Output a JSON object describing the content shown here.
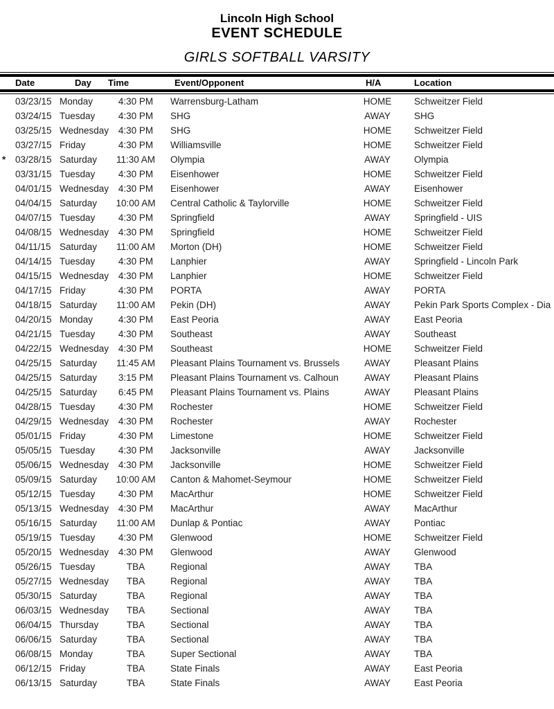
{
  "page": {
    "school": "Lincoln High School",
    "title": "EVENT SCHEDULE",
    "subtitle": "GIRLS SOFTBALL VARSITY"
  },
  "table": {
    "columns": [
      "Date",
      "Day",
      "Time",
      "Event/Opponent",
      "H/A",
      "Location"
    ],
    "rows": [
      {
        "flag": "",
        "date": "03/23/15",
        "day": "Monday",
        "time": "4:30 PM",
        "event": "Warrensburg-Latham",
        "ha": "HOME",
        "location": "Schweitzer Field"
      },
      {
        "flag": "",
        "date": "03/24/15",
        "day": "Tuesday",
        "time": "4:30 PM",
        "event": "SHG",
        "ha": "AWAY",
        "location": "SHG"
      },
      {
        "flag": "",
        "date": "03/25/15",
        "day": "Wednesday",
        "time": "4:30 PM",
        "event": "SHG",
        "ha": "HOME",
        "location": "Schweitzer Field"
      },
      {
        "flag": "",
        "date": "03/27/15",
        "day": "Friday",
        "time": "4:30 PM",
        "event": "Williamsville",
        "ha": "HOME",
        "location": "Schweitzer Field"
      },
      {
        "flag": "*",
        "date": "03/28/15",
        "day": "Saturday",
        "time": "11:30 AM",
        "event": "Olympia",
        "ha": "AWAY",
        "location": "Olympia"
      },
      {
        "flag": "",
        "date": "03/31/15",
        "day": "Tuesday",
        "time": "4:30 PM",
        "event": "Eisenhower",
        "ha": "HOME",
        "location": "Schweitzer Field"
      },
      {
        "flag": "",
        "date": "04/01/15",
        "day": "Wednesday",
        "time": "4:30 PM",
        "event": "Eisenhower",
        "ha": "AWAY",
        "location": "Eisenhower"
      },
      {
        "flag": "",
        "date": "04/04/15",
        "day": "Saturday",
        "time": "10:00 AM",
        "event": "Central Catholic & Taylorville",
        "ha": "HOME",
        "location": "Schweitzer Field"
      },
      {
        "flag": "",
        "date": "04/07/15",
        "day": "Tuesday",
        "time": "4:30 PM",
        "event": "Springfield",
        "ha": "AWAY",
        "location": "Springfield - UIS"
      },
      {
        "flag": "",
        "date": "04/08/15",
        "day": "Wednesday",
        "time": "4:30 PM",
        "event": "Springfield",
        "ha": "HOME",
        "location": "Schweitzer Field"
      },
      {
        "flag": "",
        "date": "04/11/15",
        "day": "Saturday",
        "time": "11:00 AM",
        "event": "Morton (DH)",
        "ha": "HOME",
        "location": "Schweitzer Field"
      },
      {
        "flag": "",
        "date": "04/14/15",
        "day": "Tuesday",
        "time": "4:30 PM",
        "event": "Lanphier",
        "ha": "AWAY",
        "location": "Springfield - Lincoln Park"
      },
      {
        "flag": "",
        "date": "04/15/15",
        "day": "Wednesday",
        "time": "4:30 PM",
        "event": "Lanphier",
        "ha": "HOME",
        "location": "Schweitzer Field"
      },
      {
        "flag": "",
        "date": "04/17/15",
        "day": "Friday",
        "time": "4:30 PM",
        "event": "PORTA",
        "ha": "AWAY",
        "location": "PORTA"
      },
      {
        "flag": "",
        "date": "04/18/15",
        "day": "Saturday",
        "time": "11:00 AM",
        "event": "Pekin (DH)",
        "ha": "AWAY",
        "location": "Pekin Park Sports Complex - Dia"
      },
      {
        "flag": "",
        "date": "04/20/15",
        "day": "Monday",
        "time": "4:30 PM",
        "event": "East Peoria",
        "ha": "AWAY",
        "location": "East Peoria"
      },
      {
        "flag": "",
        "date": "04/21/15",
        "day": "Tuesday",
        "time": "4:30 PM",
        "event": "Southeast",
        "ha": "AWAY",
        "location": "Southeast"
      },
      {
        "flag": "",
        "date": "04/22/15",
        "day": "Wednesday",
        "time": "4:30 PM",
        "event": "Southeast",
        "ha": "HOME",
        "location": "Schweitzer Field"
      },
      {
        "flag": "",
        "date": "04/25/15",
        "day": "Saturday",
        "time": "11:45 AM",
        "event": "Pleasant Plains Tournament vs. Brussels",
        "ha": "AWAY",
        "location": "Pleasant Plains"
      },
      {
        "flag": "",
        "date": "04/25/15",
        "day": "Saturday",
        "time": "3:15 PM",
        "event": "Pleasant Plains Tournament vs. Calhoun",
        "ha": "AWAY",
        "location": "Pleasant Plains"
      },
      {
        "flag": "",
        "date": "04/25/15",
        "day": "Saturday",
        "time": "6:45 PM",
        "event": "Pleasant Plains Tournament vs. Plains",
        "ha": "AWAY",
        "location": "Pleasant Plains"
      },
      {
        "flag": "",
        "date": "04/28/15",
        "day": "Tuesday",
        "time": "4:30 PM",
        "event": "Rochester",
        "ha": "HOME",
        "location": "Schweitzer Field"
      },
      {
        "flag": "",
        "date": "04/29/15",
        "day": "Wednesday",
        "time": "4:30 PM",
        "event": "Rochester",
        "ha": "AWAY",
        "location": "Rochester"
      },
      {
        "flag": "",
        "date": "05/01/15",
        "day": "Friday",
        "time": "4:30 PM",
        "event": "Limestone",
        "ha": "HOME",
        "location": "Schweitzer Field"
      },
      {
        "flag": "",
        "date": "05/05/15",
        "day": "Tuesday",
        "time": "4:30 PM",
        "event": "Jacksonville",
        "ha": "AWAY",
        "location": "Jacksonville"
      },
      {
        "flag": "",
        "date": "05/06/15",
        "day": "Wednesday",
        "time": "4:30 PM",
        "event": "Jacksonville",
        "ha": "HOME",
        "location": "Schweitzer Field"
      },
      {
        "flag": "",
        "date": "05/09/15",
        "day": "Saturday",
        "time": "10:00 AM",
        "event": "Canton & Mahomet-Seymour",
        "ha": "HOME",
        "location": "Schweitzer Field"
      },
      {
        "flag": "",
        "date": "05/12/15",
        "day": "Tuesday",
        "time": "4:30 PM",
        "event": "MacArthur",
        "ha": "HOME",
        "location": "Schweitzer Field"
      },
      {
        "flag": "",
        "date": "05/13/15",
        "day": "Wednesday",
        "time": "4:30 PM",
        "event": "MacArthur",
        "ha": "AWAY",
        "location": "MacArthur"
      },
      {
        "flag": "",
        "date": "05/16/15",
        "day": "Saturday",
        "time": "11:00 AM",
        "event": "Dunlap & Pontiac",
        "ha": "AWAY",
        "location": "Pontiac"
      },
      {
        "flag": "",
        "date": "05/19/15",
        "day": "Tuesday",
        "time": "4:30 PM",
        "event": "Glenwood",
        "ha": "HOME",
        "location": "Schweitzer Field"
      },
      {
        "flag": "",
        "date": "05/20/15",
        "day": "Wednesday",
        "time": "4:30 PM",
        "event": "Glenwood",
        "ha": "AWAY",
        "location": "Glenwood"
      },
      {
        "flag": "",
        "date": "05/26/15",
        "day": "Tuesday",
        "time": "TBA",
        "event": "Regional",
        "ha": "AWAY",
        "location": "TBA"
      },
      {
        "flag": "",
        "date": "05/27/15",
        "day": "Wednesday",
        "time": "TBA",
        "event": "Regional",
        "ha": "AWAY",
        "location": "TBA"
      },
      {
        "flag": "",
        "date": "05/30/15",
        "day": "Saturday",
        "time": "TBA",
        "event": "Regional",
        "ha": "AWAY",
        "location": "TBA"
      },
      {
        "flag": "",
        "date": "06/03/15",
        "day": "Wednesday",
        "time": "TBA",
        "event": "Sectional",
        "ha": "AWAY",
        "location": "TBA"
      },
      {
        "flag": "",
        "date": "06/04/15",
        "day": "Thursday",
        "time": "TBA",
        "event": "Sectional",
        "ha": "AWAY",
        "location": "TBA"
      },
      {
        "flag": "",
        "date": "06/06/15",
        "day": "Saturday",
        "time": "TBA",
        "event": "Sectional",
        "ha": "AWAY",
        "location": "TBA"
      },
      {
        "flag": "",
        "date": "06/08/15",
        "day": "Monday",
        "time": "TBA",
        "event": "Super Sectional",
        "ha": "AWAY",
        "location": "TBA"
      },
      {
        "flag": "",
        "date": "06/12/15",
        "day": "Friday",
        "time": "TBA",
        "event": "State Finals",
        "ha": "AWAY",
        "location": "East Peoria"
      },
      {
        "flag": "",
        "date": "06/13/15",
        "day": "Saturday",
        "time": "TBA",
        "event": "State Finals",
        "ha": "AWAY",
        "location": "East Peoria"
      }
    ]
  }
}
